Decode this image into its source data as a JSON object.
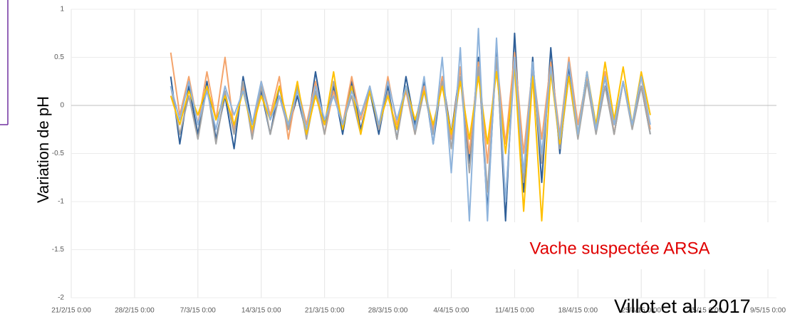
{
  "chart_data": {
    "type": "line",
    "ylabel": "Variation de pH",
    "annotations": [
      "Vache suspectée ARSA",
      "Villot et al. 2017"
    ],
    "ylim": [
      -2,
      1
    ],
    "yticks": [
      -2,
      -1.5,
      -1,
      -0.5,
      0,
      0.5,
      1
    ],
    "xlim": [
      "21/2/15 0:00",
      "9/5/15 0:00"
    ],
    "xticks": [
      "21/2/15 0:00",
      "28/2/15 0:00",
      "7/3/15 0:00",
      "14/3/15 0:00",
      "21/3/15 0:00",
      "28/3/15 0:00",
      "4/4/15 0:00",
      "11/4/15 0:00",
      "18/4/15 0:00",
      "25/4/15 0:00",
      "2/5/15 0:00",
      "9/5/15 0:00"
    ],
    "grid": true,
    "x": [
      "4/3/15 0:00",
      "5/3/15 0:00",
      "6/3/15 0:00",
      "7/3/15 0:00",
      "8/3/15 0:00",
      "9/3/15 0:00",
      "10/3/15 0:00",
      "11/3/15 0:00",
      "12/3/15 0:00",
      "13/3/15 0:00",
      "14/3/15 0:00",
      "15/3/15 0:00",
      "16/3/15 0:00",
      "17/3/15 0:00",
      "18/3/15 0:00",
      "19/3/15 0:00",
      "20/3/15 0:00",
      "21/3/15 0:00",
      "22/3/15 0:00",
      "23/3/15 0:00",
      "24/3/15 0:00",
      "25/3/15 0:00",
      "26/3/15 0:00",
      "27/3/15 0:00",
      "28/3/15 0:00",
      "29/3/15 0:00",
      "30/3/15 0:00",
      "31/3/15 0:00",
      "1/4/15 0:00",
      "2/4/15 0:00",
      "3/4/15 0:00",
      "4/4/15 0:00",
      "5/4/15 0:00",
      "6/4/15 0:00",
      "7/4/15 0:00",
      "8/4/15 0:00",
      "9/4/15 0:00",
      "10/4/15 0:00",
      "11/4/15 0:00",
      "12/4/15 0:00",
      "13/4/15 0:00",
      "14/4/15 0:00",
      "15/4/15 0:00",
      "16/4/15 0:00",
      "17/4/15 0:00",
      "18/4/15 0:00",
      "19/4/15 0:00",
      "20/4/15 0:00",
      "21/4/15 0:00",
      "22/4/15 0:00",
      "23/4/15 0:00",
      "24/4/15 0:00",
      "25/4/15 0:00",
      "26/4/15 0:00"
    ],
    "series": [
      {
        "color": "#2f5f98",
        "values": [
          0.3,
          -0.4,
          0.2,
          -0.3,
          0.25,
          -0.35,
          0.1,
          -0.45,
          0.3,
          -0.2,
          0.15,
          -0.3,
          0.2,
          -0.25,
          0.1,
          -0.3,
          0.35,
          -0.2,
          0.2,
          -0.3,
          0.25,
          -0.25,
          0.15,
          -0.3,
          0.2,
          -0.35,
          0.3,
          -0.2,
          0.25,
          -0.4,
          0.3,
          -0.3,
          0.4,
          -0.6,
          0.5,
          -1.1,
          0.6,
          -1.2,
          0.75,
          -0.9,
          0.5,
          -0.8,
          0.6,
          -0.5,
          0.4,
          -0.3,
          0.35,
          -0.25,
          0.3,
          -0.3,
          0.25,
          -0.2,
          0.2,
          -0.3
        ]
      },
      {
        "color": "#f4a46c",
        "values": [
          0.55,
          -0.1,
          0.3,
          -0.2,
          0.35,
          -0.15,
          0.5,
          -0.25,
          0.2,
          -0.3,
          0.25,
          -0.1,
          0.3,
          -0.35,
          0.2,
          -0.2,
          0.25,
          -0.3,
          0.15,
          -0.2,
          0.3,
          -0.15,
          0.2,
          -0.25,
          0.3,
          -0.2,
          0.15,
          -0.3,
          0.2,
          -0.25,
          0.3,
          -0.35,
          0.4,
          -0.5,
          0.45,
          -0.6,
          0.5,
          -0.4,
          0.55,
          -0.5,
          0.4,
          -0.35,
          0.45,
          -0.3,
          0.5,
          -0.2,
          0.3,
          -0.25,
          0.35,
          -0.3,
          0.25,
          -0.2,
          0.3,
          -0.25
        ]
      },
      {
        "color": "#a5a5a5",
        "values": [
          0.2,
          -0.3,
          0.1,
          -0.35,
          0.2,
          -0.4,
          0.15,
          -0.3,
          0.25,
          -0.35,
          0.2,
          -0.3,
          0.1,
          -0.25,
          0.2,
          -0.35,
          0.15,
          -0.3,
          0.25,
          -0.2,
          0.1,
          -0.3,
          0.2,
          -0.25,
          0.15,
          -0.35,
          0.2,
          -0.3,
          0.15,
          -0.3,
          0.25,
          -0.45,
          0.3,
          -0.7,
          0.4,
          -0.9,
          0.5,
          -1.0,
          0.45,
          -0.8,
          0.35,
          -0.6,
          0.4,
          -0.45,
          0.3,
          -0.35,
          0.25,
          -0.3,
          0.2,
          -0.3,
          0.25,
          -0.25,
          0.2,
          -0.3
        ]
      },
      {
        "color": "#ffc000",
        "values": [
          0.1,
          -0.2,
          0.15,
          -0.1,
          0.2,
          -0.15,
          0.1,
          -0.2,
          0.15,
          -0.25,
          0.1,
          -0.15,
          0.2,
          -0.2,
          0.25,
          -0.3,
          0.1,
          -0.2,
          0.35,
          -0.25,
          0.2,
          -0.3,
          0.15,
          -0.2,
          0.1,
          -0.25,
          0.2,
          -0.15,
          0.15,
          -0.2,
          0.2,
          -0.3,
          0.25,
          -0.35,
          0.3,
          -0.4,
          0.35,
          -0.5,
          0.4,
          -1.1,
          0.3,
          -1.2,
          0.35,
          -0.4,
          0.3,
          -0.3,
          0.35,
          -0.2,
          0.45,
          -0.15,
          0.4,
          -0.2,
          0.35,
          -0.1
        ]
      },
      {
        "color": "#8fb4dc",
        "values": [
          0.2,
          -0.15,
          0.25,
          -0.2,
          0.15,
          -0.25,
          0.2,
          -0.1,
          0.15,
          -0.2,
          0.25,
          -0.15,
          0.1,
          -0.2,
          0.15,
          -0.25,
          0.2,
          -0.15,
          0.1,
          -0.2,
          0.15,
          -0.1,
          0.2,
          -0.2,
          0.25,
          -0.15,
          0.2,
          -0.25,
          0.3,
          -0.4,
          0.5,
          -0.7,
          0.6,
          -1.2,
          0.8,
          -1.2,
          0.7,
          -1.0,
          0.5,
          -0.7,
          0.45,
          -0.5,
          0.4,
          -0.35,
          0.45,
          -0.3,
          0.35,
          -0.25,
          0.3,
          -0.2,
          0.25,
          -0.2,
          0.3,
          -0.2
        ]
      }
    ]
  }
}
